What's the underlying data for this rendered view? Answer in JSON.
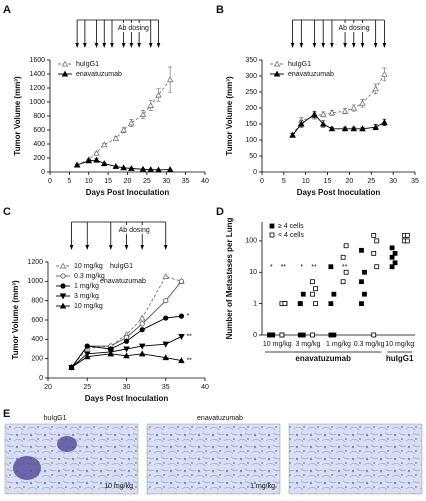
{
  "chart_data": [
    {
      "type": "line",
      "panel": "A",
      "x_label": "Days Post Inoculation",
      "y_label": "Tumor Volume (mm³)",
      "xlim": [
        0,
        40
      ],
      "xticks": [
        0,
        5,
        10,
        15,
        20,
        25,
        30,
        35,
        40
      ],
      "ylim": [
        0,
        1600
      ],
      "yticks": [
        0,
        200,
        400,
        600,
        800,
        1000,
        1200,
        1400,
        1600
      ],
      "dosing": {
        "text": "Ab dosing",
        "days": [
          7,
          9,
          12,
          14,
          16,
          19,
          21,
          23,
          26,
          28
        ]
      },
      "legend": "top-left",
      "x": [
        7,
        10,
        12,
        14,
        17,
        19,
        21,
        24,
        26,
        28,
        31
      ],
      "series": [
        {
          "name": "huIgG1",
          "color": "#777777",
          "marker": "open-triangle",
          "dashed": true,
          "values": [
            100,
            180,
            270,
            390,
            480,
            600,
            700,
            820,
            950,
            1100,
            1320
          ],
          "errors": [
            5,
            10,
            15,
            20,
            30,
            40,
            50,
            60,
            70,
            90,
            180
          ]
        },
        {
          "name": "enavatuzumab",
          "color": "#000000",
          "marker": "filled-triangle",
          "dashed": false,
          "values": [
            100,
            160,
            170,
            120,
            80,
            60,
            50,
            40,
            35,
            30,
            35
          ],
          "errors": [
            10,
            15,
            20,
            10,
            5,
            5,
            5,
            5,
            5,
            5,
            5
          ]
        }
      ]
    },
    {
      "type": "line",
      "panel": "B",
      "x_label": "Days Post Inoculation",
      "y_label": "Tumor Volume (mm³)",
      "xlim": [
        0,
        35
      ],
      "xticks": [
        0,
        5,
        10,
        15,
        20,
        25,
        30,
        35
      ],
      "ylim": [
        0,
        350
      ],
      "yticks": [
        0,
        50,
        100,
        150,
        200,
        250,
        300,
        350
      ],
      "dosing": {
        "text": "Ab dosing",
        "days": [
          7,
          9,
          12,
          14,
          16,
          19,
          21,
          23,
          26,
          28
        ]
      },
      "legend": "top-left",
      "x": [
        7,
        9,
        12,
        14,
        16,
        19,
        21,
        23,
        26,
        28
      ],
      "series": [
        {
          "name": "huIgG1",
          "color": "#777777",
          "marker": "open-triangle",
          "dashed": true,
          "values": [
            115,
            160,
            175,
            180,
            185,
            190,
            200,
            215,
            260,
            305
          ],
          "errors": [
            5,
            10,
            10,
            8,
            8,
            8,
            10,
            12,
            15,
            20
          ]
        },
        {
          "name": "enavatuzumab",
          "color": "#000000",
          "marker": "filled-triangle",
          "dashed": false,
          "values": [
            115,
            150,
            180,
            150,
            135,
            135,
            135,
            135,
            140,
            155
          ],
          "errors": [
            5,
            10,
            10,
            10,
            5,
            5,
            5,
            5,
            8,
            10
          ]
        }
      ]
    },
    {
      "type": "line",
      "panel": "C",
      "x_label": "Days Post Inoculation",
      "y_label": "Tumor Volume (mm³)",
      "xlim": [
        20,
        40
      ],
      "xticks": [
        20,
        25,
        30,
        35,
        40
      ],
      "ylim": [
        0,
        1200
      ],
      "yticks": [
        0,
        200,
        400,
        600,
        800,
        1000,
        1200
      ],
      "dosing": {
        "text": "Ab dosing",
        "days": [
          23,
          25,
          28,
          30,
          32,
          35
        ]
      },
      "legend": "top-left",
      "legend_groups": [
        "huIgG1",
        "enavatuzumab"
      ],
      "x": [
        23,
        25,
        28,
        30,
        32,
        35,
        37
      ],
      "series": [
        {
          "name": "10 mg/kg",
          "color": "#777777",
          "marker": "open-triangle",
          "dashed": true,
          "values": [
            110,
            310,
            330,
            450,
            620,
            1050,
            1000
          ]
        },
        {
          "name": "0.3 mg/kg",
          "color": "#555555",
          "marker": "open-circle",
          "dashed": false,
          "values": [
            110,
            330,
            330,
            420,
            560,
            800,
            1000
          ]
        },
        {
          "name": "1 mg/kg",
          "color": "#000000",
          "marker": "filled-circle",
          "dashed": false,
          "values": [
            110,
            330,
            300,
            380,
            500,
            620,
            640
          ],
          "end_label": "*"
        },
        {
          "name": "3 mg/kg",
          "color": "#000000",
          "marker": "filled-triangle-down",
          "dashed": false,
          "values": [
            110,
            250,
            270,
            300,
            330,
            350,
            430
          ],
          "end_label": "**"
        },
        {
          "name": "10 mg/kg",
          "color": "#000000",
          "marker": "filled-triangle",
          "dashed": false,
          "values": [
            110,
            220,
            250,
            230,
            250,
            210,
            180
          ],
          "end_label": "**"
        }
      ]
    },
    {
      "type": "strip",
      "panel": "D",
      "y_label": "Number of Metastases per Lung",
      "yscale": "symlog",
      "ylim": [
        0,
        400
      ],
      "yticks": [
        0,
        1,
        10,
        100
      ],
      "legend": "top-left",
      "groups": [
        {
          "name": "enavatuzumab",
          "categories": [
            "10 mg/kg",
            "3 mg/kg",
            "1 mg/kg",
            "0.3 mg/kg"
          ]
        },
        {
          "name": "huIgG1",
          "categories": [
            "10 mg/kg"
          ]
        }
      ],
      "series": [
        {
          "name": "≥ 4 cells",
          "marker": "filled-square",
          "color": "#000000",
          "values": [
            [
              0,
              0,
              0,
              0,
              0
            ],
            [
              0,
              0,
              1,
              2,
              1
            ],
            [
              0,
              0,
              1,
              2,
              15
            ],
            [
              1,
              2,
              5,
              10,
              50
            ],
            [
              15,
              20,
              30,
              40,
              60
            ]
          ],
          "annotations": [
            "*",
            "*",
            null,
            null,
            null
          ]
        },
        {
          "name": "< 4 cells",
          "marker": "open-square",
          "color": "#000000",
          "values": [
            [
              0,
              1,
              1,
              1,
              0
            ],
            [
              0,
              1,
              2,
              3,
              5
            ],
            [
              5,
              10,
              30,
              70
            ],
            [
              0,
              15,
              40,
              100,
              150
            ],
            [
              100,
              100,
              150,
              150
            ]
          ],
          "annotations": [
            "**",
            "**",
            "**",
            null,
            null
          ]
        }
      ]
    }
  ],
  "panel_e": {
    "panel": "E",
    "labels": [
      "huIgG1",
      "enavatuzumab"
    ],
    "images": [
      "10 mg/kg",
      "1 mg/kg"
    ]
  }
}
